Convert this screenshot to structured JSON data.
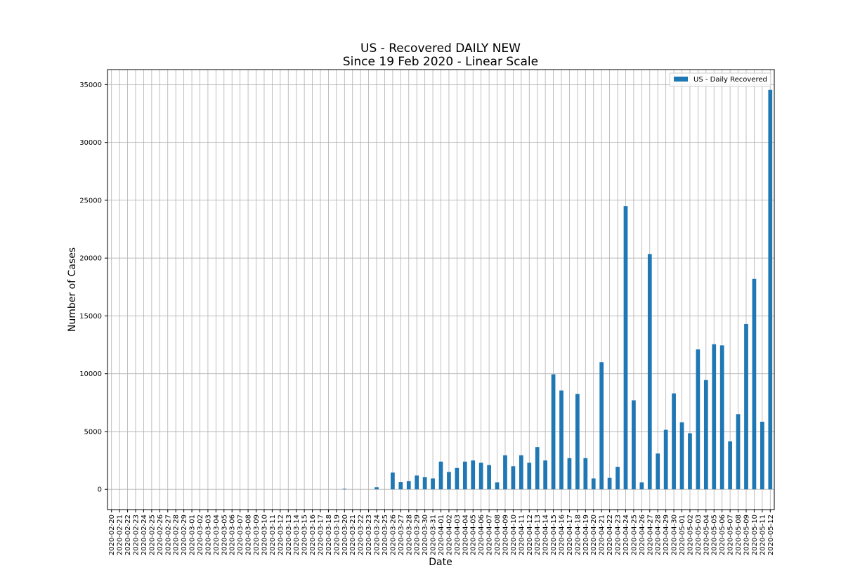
{
  "chart_data": {
    "type": "bar",
    "title": "US - Recovered DAILY NEW",
    "subtitle": "Since 19 Feb 2020 - Linear Scale",
    "xlabel": "Date",
    "ylabel": "Number of Cases",
    "ylim": [
      -1750,
      36300
    ],
    "yticks": [
      0,
      5000,
      10000,
      15000,
      20000,
      25000,
      30000,
      35000
    ],
    "grid": true,
    "legend_position": "top-right",
    "bar_color": "#1f77b4",
    "categories": [
      "2020-02-20",
      "2020-02-21",
      "2020-02-22",
      "2020-02-23",
      "2020-02-24",
      "2020-02-25",
      "2020-02-26",
      "2020-02-27",
      "2020-02-28",
      "2020-02-29",
      "2020-03-01",
      "2020-03-02",
      "2020-03-03",
      "2020-03-04",
      "2020-03-05",
      "2020-03-06",
      "2020-03-07",
      "2020-03-08",
      "2020-03-09",
      "2020-03-10",
      "2020-03-11",
      "2020-03-12",
      "2020-03-13",
      "2020-03-14",
      "2020-03-15",
      "2020-03-16",
      "2020-03-17",
      "2020-03-18",
      "2020-03-19",
      "2020-03-20",
      "2020-03-21",
      "2020-03-22",
      "2020-03-23",
      "2020-03-24",
      "2020-03-25",
      "2020-03-26",
      "2020-03-27",
      "2020-03-28",
      "2020-03-29",
      "2020-03-30",
      "2020-03-31",
      "2020-04-01",
      "2020-04-02",
      "2020-04-03",
      "2020-04-04",
      "2020-04-05",
      "2020-04-06",
      "2020-04-07",
      "2020-04-08",
      "2020-04-09",
      "2020-04-10",
      "2020-04-11",
      "2020-04-12",
      "2020-04-13",
      "2020-04-14",
      "2020-04-15",
      "2020-04-16",
      "2020-04-17",
      "2020-04-18",
      "2020-04-19",
      "2020-04-20",
      "2020-04-21",
      "2020-04-22",
      "2020-04-23",
      "2020-04-24",
      "2020-04-25",
      "2020-04-26",
      "2020-04-27",
      "2020-04-28",
      "2020-04-29",
      "2020-04-30",
      "2020-05-01",
      "2020-05-02",
      "2020-05-03",
      "2020-05-04",
      "2020-05-05",
      "2020-05-06",
      "2020-05-07",
      "2020-05-08",
      "2020-05-09",
      "2020-05-10",
      "2020-05-11",
      "2020-05-12"
    ],
    "series": [
      {
        "name": "US - Daily Recovered",
        "values": [
          0,
          0,
          0,
          0,
          0,
          0,
          0,
          0,
          0,
          0,
          0,
          0,
          0,
          0,
          0,
          0,
          0,
          0,
          0,
          0,
          0,
          0,
          0,
          0,
          0,
          0,
          0,
          0,
          0,
          50,
          0,
          0,
          0,
          180,
          0,
          1450,
          620,
          720,
          1200,
          1050,
          950,
          2400,
          1500,
          1850,
          2400,
          2500,
          2300,
          2100,
          600,
          2950,
          2000,
          2950,
          2300,
          3650,
          2500,
          9950,
          8550,
          2700,
          8250,
          2700,
          950,
          11000,
          1000,
          1950,
          24500,
          7700,
          600,
          20350,
          3100,
          5150,
          8300,
          5800,
          4850,
          12100,
          9450,
          12550,
          12450,
          4150,
          6500,
          14300,
          18200,
          5850,
          34550
        ]
      }
    ]
  }
}
